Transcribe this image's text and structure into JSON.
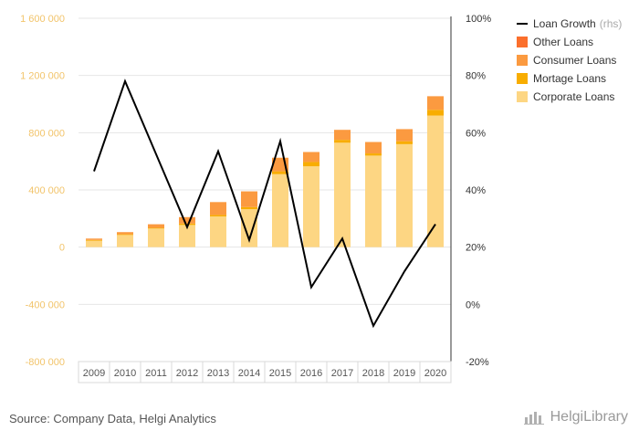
{
  "chart_data": {
    "type": "bar",
    "categories": [
      "2009",
      "2010",
      "2011",
      "2012",
      "2013",
      "2014",
      "2015",
      "2016",
      "2017",
      "2018",
      "2019",
      "2020"
    ],
    "series": [
      {
        "name": "Corporate Loans",
        "type": "bar",
        "axis": "left",
        "color": "#fdd683",
        "values": [
          45000,
          85000,
          130000,
          155000,
          215000,
          265000,
          510000,
          565000,
          730000,
          640000,
          720000,
          920000
        ]
      },
      {
        "name": "Mortage Loans",
        "type": "bar",
        "axis": "left",
        "color": "#f8ad00",
        "values": [
          5000,
          5000,
          5000,
          10000,
          10000,
          15000,
          20000,
          30000,
          20000,
          15000,
          20000,
          40000
        ]
      },
      {
        "name": "Consumer Loans",
        "type": "bar",
        "axis": "left",
        "color": "#fb9a40",
        "values": [
          10000,
          15000,
          25000,
          45000,
          90000,
          110000,
          95000,
          70000,
          70000,
          80000,
          85000,
          95000
        ]
      },
      {
        "name": "Other Loans",
        "type": "bar",
        "axis": "left",
        "color": "#fb6f2c",
        "values": [
          0,
          0,
          0,
          0,
          0,
          0,
          0,
          0,
          0,
          0,
          0,
          0
        ]
      },
      {
        "name": "Loan Growth",
        "type": "line",
        "axis": "right",
        "color": "#000000",
        "values": [
          46.5,
          78,
          52.5,
          27,
          53.5,
          22.5,
          57,
          6,
          23,
          -7.5,
          11.5,
          28
        ]
      }
    ],
    "yleft": {
      "ticks": [
        -800000,
        -400000,
        0,
        400000,
        800000,
        1200000,
        1600000
      ],
      "tick_labels": [
        "-800 000",
        "-400 000",
        "0",
        "400 000",
        "800 000",
        "1 200 000",
        "1 600 000"
      ],
      "range": [
        -800000,
        1600000
      ]
    },
    "yright": {
      "ticks": [
        -20,
        0,
        20,
        40,
        60,
        80,
        100
      ],
      "tick_labels": [
        "-20%",
        "0%",
        "20%",
        "40%",
        "60%",
        "80%",
        "100%"
      ],
      "range": [
        -20,
        100
      ]
    },
    "grid": true,
    "legend_placement": "top-right"
  },
  "legend": {
    "line_label": "Loan Growth",
    "rhs_note": "(rhs)",
    "items": [
      {
        "label": "Other Loans",
        "color": "#fb6f2c"
      },
      {
        "label": "Consumer Loans",
        "color": "#fb9a40"
      },
      {
        "label": "Mortage Loans",
        "color": "#f8ad00"
      },
      {
        "label": "Corporate Loans",
        "color": "#fdd683"
      }
    ]
  },
  "footer": {
    "source": "Source: Company Data, Helgi Analytics",
    "brand": "HelgiLibrary"
  },
  "colors": {
    "left_axis_text": "#f2c46b",
    "right_axis_text": "#333333",
    "grid": "#e6e6e6"
  }
}
